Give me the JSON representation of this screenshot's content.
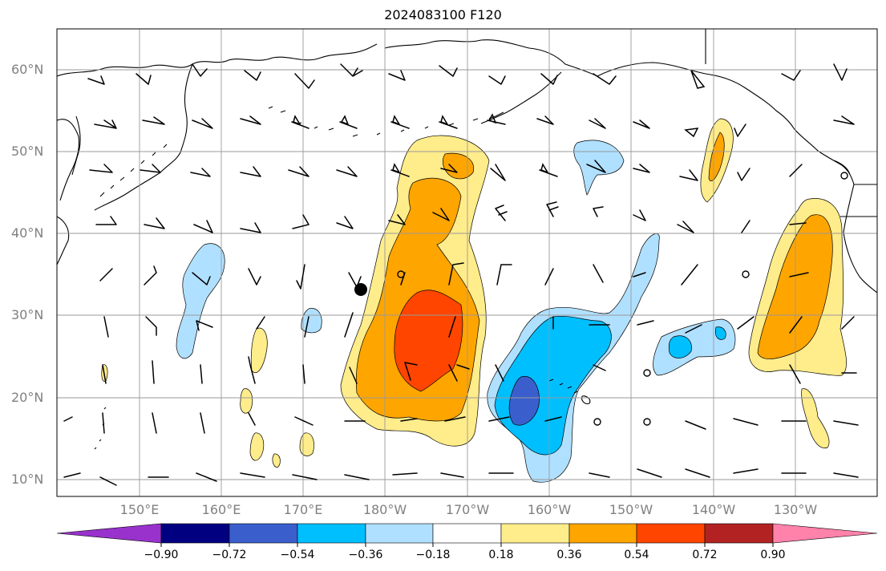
{
  "title": "2024083100 F120",
  "lat_labels": [
    "60°N",
    "50°N",
    "40°N",
    "30°N",
    "20°N",
    "10°N"
  ],
  "lon_labels": [
    "150°E",
    "160°E",
    "170°E",
    "180°W",
    "170°W",
    "160°W",
    "150°W",
    "140°W",
    "130°W"
  ],
  "colorbar": {
    "tick_labels": [
      "−0.90",
      "−0.72",
      "−0.54",
      "−0.36",
      "−0.18",
      "0.18",
      "0.36",
      "0.54",
      "0.72",
      "0.90"
    ],
    "colors": [
      "#9932CC",
      "#000080",
      "#3A5FCD",
      "#00BFFF",
      "#B0E0FF",
      "#FFFFFF",
      "#FFEC8B",
      "#FFA500",
      "#FF4500",
      "#B22222",
      "#FF82AB"
    ]
  },
  "fill_colors": {
    "light_yellow": "#FFEC8B",
    "orange": "#FFA500",
    "red_orange": "#FF4500",
    "light_blue": "#B0E0FF",
    "deep_sky_blue": "#00BFFF",
    "royal_blue": "#3A5FCD"
  }
}
